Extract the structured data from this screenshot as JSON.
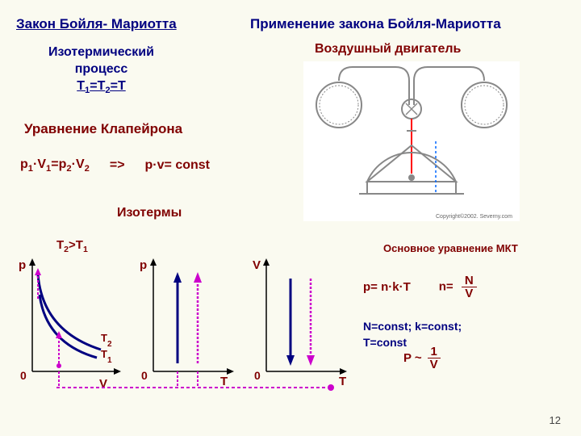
{
  "titles": {
    "law_left": "Закон Бойля- Мариотта",
    "app_right": "Применение закона Бойля-Мариотта",
    "isothermal1": "Изотермический",
    "isothermal2": "процесс",
    "isothermal3_html": "T<sub>1</sub>=T<sub>2</sub>=T",
    "air_engine": "Воздушный двигатель",
    "clapeyron": "Уравнение Клапейрона",
    "isotherms": "Изотермы",
    "t_ineq_html": "T<sub>2</sub>&gt;T<sub>1</sub>"
  },
  "equation": {
    "eq_html": "p<sub>1</sub>·V<sub>1</sub>=p<sub>2</sub>·V<sub>2</sub>",
    "arrow": "=>",
    "const": "p·v= const"
  },
  "graphs": {
    "axis_color": "#000000",
    "curve_color": "#000080",
    "arrow_magenta": "#cc00cc",
    "t1_label_html": "T<sub>1</sub>",
    "t2_label_html": "T<sub>2</sub>",
    "p_label": "p",
    "v_label": "V",
    "t_label": "T",
    "zero": "0"
  },
  "mkt": {
    "title": "Основное уравнение МКТ",
    "eq1_left": "p= n·k·T",
    "eq1_right_n": "n=",
    "eq1_frac_num": "N",
    "eq1_frac_den": "V",
    "eq2_line1": "N=const; k=const;",
    "eq2_line2": "T=const",
    "eq3_left": "P ~",
    "eq3_num": "1",
    "eq3_den": "V"
  },
  "engine": {
    "stroke": "#888888",
    "red": "#ff0000",
    "blue": "#0066ff"
  },
  "copyright": "Copyright©2002. Severny.com",
  "page_num": "12",
  "colors": {
    "red_text": "#800000",
    "blue_text": "#000080",
    "bg": "#fafaf0"
  }
}
